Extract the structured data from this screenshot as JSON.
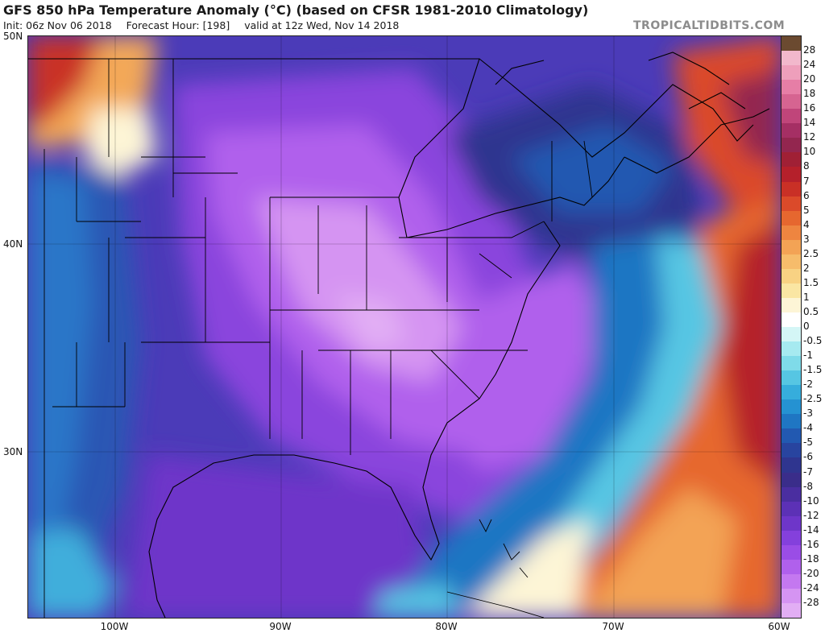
{
  "header": {
    "title": "GFS 850 hPa Temperature Anomaly (°C) (based on CFSR 1981-2010 Climatology)",
    "init": "Init: 06z Nov 06 2018",
    "forecast_hour": "Forecast Hour: [198]",
    "valid": "valid at 12z Wed, Nov 14 2018"
  },
  "watermark": "TROPICALTIDBITS.COM",
  "latitude_labels": [
    "50N",
    "40N",
    "30N"
  ],
  "longitude_labels": [
    "100W",
    "90W",
    "80W",
    "70W",
    "60W"
  ],
  "colorbar": {
    "labels": [
      "28",
      "24",
      "20",
      "18",
      "16",
      "14",
      "12",
      "10",
      "8",
      "7",
      "6",
      "5",
      "4",
      "3",
      "2.5",
      "2",
      "1.5",
      "1",
      "0.5",
      "0",
      "-0.5",
      "-1",
      "-1.5",
      "-2",
      "-2.5",
      "-3",
      "-4",
      "-5",
      "-6",
      "-7",
      "-8",
      "-10",
      "-12",
      "-14",
      "-16",
      "-18",
      "-20",
      "-24",
      "-28"
    ],
    "colors": [
      "#f2b8cc",
      "#ee9fbb",
      "#e67ea6",
      "#d66491",
      "#c0457a",
      "#a52f64",
      "#93264f",
      "#a02035",
      "#b5202b",
      "#c93026",
      "#db4a2a",
      "#e6672f",
      "#ee8540",
      "#f3a355",
      "#f6bc6b",
      "#f8d283",
      "#fae6a3",
      "#fdf5d6",
      "#ffffff",
      "#d4f6f6",
      "#a6eaf0",
      "#7fdbe9",
      "#56c6e3",
      "#36addc",
      "#2592d2",
      "#1f76c3",
      "#2259b1",
      "#28449f",
      "#2f358f",
      "#3a2d8a",
      "#4a2ea0",
      "#5c31b6",
      "#6e36c9",
      "#8440dc",
      "#9a4de6",
      "#b060ec",
      "#c478f0",
      "#d594f2",
      "#e2aef4",
      "#6b4a30"
    ]
  }
}
